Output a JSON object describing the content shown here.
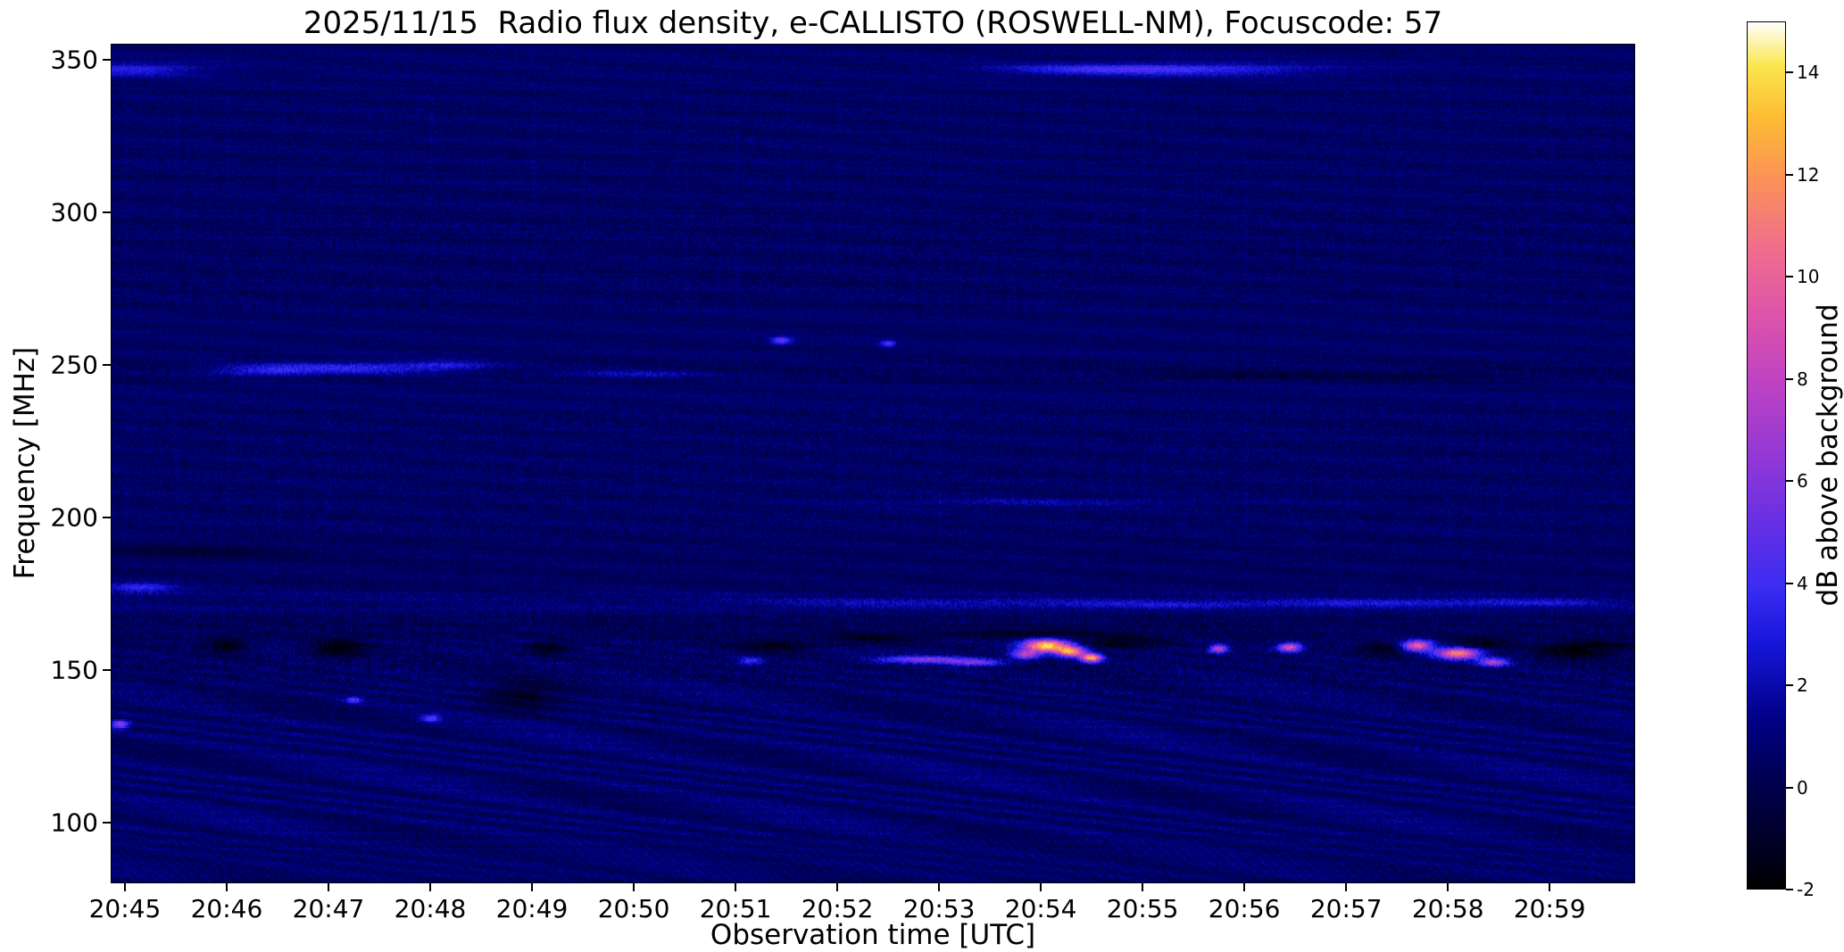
{
  "title": "2025/11/15  Radio flux density, e-CALLISTO (ROSWELL-NM), Focuscode: 57",
  "chart_data": {
    "type": "heatmap",
    "title": "2025/11/15  Radio flux density, e-CALLISTO (ROSWELL-NM), Focuscode: 57",
    "xlabel": "Observation time [UTC]",
    "ylabel": "Frequency [MHz]",
    "colorbar_label": "dB above background",
    "x_ticks": [
      "20:45",
      "20:46",
      "20:47",
      "20:48",
      "20:49",
      "20:50",
      "20:51",
      "20:52",
      "20:53",
      "20:54",
      "20:55",
      "20:56",
      "20:57",
      "20:58",
      "20:59"
    ],
    "x_range_minutes": [
      -0.14,
      14.84
    ],
    "y_ticks": [
      350,
      300,
      250,
      200,
      150,
      100
    ],
    "y_range_mhz": [
      80.0,
      355.4
    ],
    "value_range_db": [
      -2,
      15
    ],
    "colorbar_ticks": [
      14,
      12,
      10,
      8,
      6,
      4,
      2,
      0,
      -2
    ],
    "grid": false,
    "legend": "colorbar-right",
    "colormap_stops": [
      [
        0.0,
        "#000000"
      ],
      [
        0.06,
        "#00002a"
      ],
      [
        0.12,
        "#00004d"
      ],
      [
        0.2,
        "#010189"
      ],
      [
        0.28,
        "#1515d8"
      ],
      [
        0.35,
        "#3c2df3"
      ],
      [
        0.42,
        "#662fe4"
      ],
      [
        0.5,
        "#9338d5"
      ],
      [
        0.58,
        "#bc42c4"
      ],
      [
        0.66,
        "#dd53ab"
      ],
      [
        0.74,
        "#f06e8c"
      ],
      [
        0.82,
        "#fb9257"
      ],
      [
        0.89,
        "#fdbc33"
      ],
      [
        0.95,
        "#fae64e"
      ],
      [
        1.0,
        "#ffffff"
      ]
    ],
    "noise_seed": 42,
    "background_level_db": 0.55,
    "background_bands": [
      {
        "lo": 340,
        "hi": 356,
        "bias": 0.1,
        "noise": 0.45,
        "ripple": 0
      },
      {
        "lo": 300,
        "hi": 340,
        "bias": 0.0,
        "noise": 0.5,
        "ripple": 0,
        "columns": true
      },
      {
        "lo": 268,
        "hi": 300,
        "bias": -0.05,
        "noise": 0.6,
        "ripple": 0,
        "columns": true
      },
      {
        "lo": 252,
        "hi": 268,
        "bias": 0.02,
        "noise": 0.42,
        "ripple": 0
      },
      {
        "lo": 244,
        "hi": 252,
        "bias": -0.15,
        "noise": 0.65,
        "ripple": 0
      },
      {
        "lo": 236,
        "hi": 244,
        "bias": 0.08,
        "noise": 0.45,
        "ripple": 0
      },
      {
        "lo": 194,
        "hi": 236,
        "bias": -0.02,
        "noise": 0.62,
        "ripple": 0,
        "columns": true
      },
      {
        "lo": 176,
        "hi": 194,
        "bias": -0.1,
        "noise": 0.5,
        "ripple": 0
      },
      {
        "lo": 168,
        "hi": 176,
        "bias": 0.22,
        "noise": 0.65,
        "ripple": 0
      },
      {
        "lo": 160,
        "hi": 168,
        "bias": -0.3,
        "noise": 0.75,
        "ripple": 0.15
      },
      {
        "lo": 146,
        "hi": 160,
        "bias": -0.08,
        "noise": 0.85,
        "ripple": 0.25
      },
      {
        "lo": 134,
        "hi": 146,
        "bias": 0.02,
        "noise": 0.65,
        "ripple": 0.4
      },
      {
        "lo": 96,
        "hi": 134,
        "bias": 0.12,
        "noise": 0.55,
        "ripple": 0.5
      },
      {
        "lo": 80,
        "hi": 96,
        "bias": 0.1,
        "noise": 0.45,
        "ripple": 0.3,
        "stripes": true
      }
    ],
    "features": [
      {
        "t": 0.05,
        "f": 347,
        "wt": 0.5,
        "wf": 1.5,
        "db": 2.6
      },
      {
        "t": 9.5,
        "f": 347,
        "wt": 0.7,
        "wf": 1.2,
        "db": 2.2
      },
      {
        "t": 10.6,
        "f": 347,
        "wt": 0.9,
        "wf": 1.4,
        "db": 2.6
      },
      {
        "t": 2.25,
        "f": 249,
        "wt": 0.7,
        "wf": 1.3,
        "db": 3.0
      },
      {
        "t": 1.35,
        "f": 248,
        "wt": 0.35,
        "wf": 1.2,
        "db": 2.2
      },
      {
        "t": 3.2,
        "f": 250,
        "wt": 0.3,
        "wf": 1.0,
        "db": 1.8
      },
      {
        "t": 5.0,
        "f": 247,
        "wt": 0.5,
        "wf": 1.0,
        "db": 1.5
      },
      {
        "t": 0.15,
        "f": 177,
        "wt": 0.25,
        "wf": 1.3,
        "db": 2.8
      },
      {
        "t": 6.45,
        "f": 258,
        "wt": 0.07,
        "wf": 0.9,
        "db": 4.5
      },
      {
        "t": 7.5,
        "f": 257,
        "wt": 0.05,
        "wf": 0.8,
        "db": 3.8
      },
      {
        "t": 8.0,
        "f": 172,
        "wt": 1.5,
        "wf": 0.9,
        "db": 1.6
      },
      {
        "t": 10.4,
        "f": 171.5,
        "wt": 0.8,
        "wf": 0.8,
        "db": 1.7
      },
      {
        "t": 12.45,
        "f": 172,
        "wt": 0.8,
        "wf": 0.9,
        "db": 2.2
      },
      {
        "t": 13.9,
        "f": 172,
        "wt": 0.5,
        "wf": 0.8,
        "db": 1.9
      },
      {
        "t": 9.0,
        "f": 205,
        "wt": 1.2,
        "wf": 1.0,
        "db": 1.0
      },
      {
        "t": 9.05,
        "f": 158,
        "wt": 0.16,
        "wf": 1.4,
        "db": 14.0
      },
      {
        "t": 9.3,
        "f": 156,
        "wt": 0.1,
        "wf": 1.2,
        "db": 11.0
      },
      {
        "t": 8.85,
        "f": 155,
        "wt": 0.1,
        "wf": 1.0,
        "db": 7.0
      },
      {
        "t": 9.5,
        "f": 154,
        "wt": 0.07,
        "wf": 1.0,
        "db": 12.0
      },
      {
        "t": 7.85,
        "f": 153.5,
        "wt": 0.3,
        "wf": 0.8,
        "db": 5.5
      },
      {
        "t": 8.35,
        "f": 152.5,
        "wt": 0.2,
        "wf": 0.8,
        "db": 5.0
      },
      {
        "t": 10.75,
        "f": 157,
        "wt": 0.06,
        "wf": 0.9,
        "db": 8.0
      },
      {
        "t": 11.45,
        "f": 157.5,
        "wt": 0.08,
        "wf": 1.0,
        "db": 9.0
      },
      {
        "t": 12.7,
        "f": 158,
        "wt": 0.1,
        "wf": 1.2,
        "db": 9.5
      },
      {
        "t": 13.1,
        "f": 155.5,
        "wt": 0.15,
        "wf": 1.3,
        "db": 11.0
      },
      {
        "t": 13.45,
        "f": 152.5,
        "wt": 0.1,
        "wf": 0.9,
        "db": 7.0
      },
      {
        "t": -0.05,
        "f": 132,
        "wt": 0.06,
        "wf": 0.9,
        "db": 6.0
      },
      {
        "t": 3.0,
        "f": 134,
        "wt": 0.07,
        "wf": 0.8,
        "db": 4.5
      },
      {
        "t": 2.25,
        "f": 140,
        "wt": 0.06,
        "wf": 0.8,
        "db": 3.5
      },
      {
        "t": 6.15,
        "f": 153,
        "wt": 0.08,
        "wf": 0.8,
        "db": 4.0
      },
      {
        "t": 1.0,
        "f": 158,
        "wt": 0.15,
        "wf": 1.8,
        "db": -2.2
      },
      {
        "t": 2.1,
        "f": 157,
        "wt": 0.2,
        "wf": 2.2,
        "db": -2.2
      },
      {
        "t": 3.9,
        "f": 141,
        "wt": 0.25,
        "wf": 3.5,
        "db": -1.6
      },
      {
        "t": 4.15,
        "f": 157,
        "wt": 0.15,
        "wf": 1.5,
        "db": -1.8
      },
      {
        "t": 6.4,
        "f": 158,
        "wt": 0.25,
        "wf": 1.5,
        "db": -1.8
      },
      {
        "t": 7.3,
        "f": 160,
        "wt": 0.3,
        "wf": 1.5,
        "db": -1.5
      },
      {
        "t": 8.9,
        "f": 162,
        "wt": 0.6,
        "wf": 1.0,
        "db": -1.5
      },
      {
        "t": 9.8,
        "f": 159,
        "wt": 0.3,
        "wf": 1.4,
        "db": -2.0
      },
      {
        "t": 12.35,
        "f": 157,
        "wt": 0.15,
        "wf": 1.6,
        "db": -2.0
      },
      {
        "t": 13.3,
        "f": 158.5,
        "wt": 0.2,
        "wf": 1.6,
        "db": -2.0
      },
      {
        "t": 14.2,
        "f": 156,
        "wt": 0.25,
        "wf": 2.0,
        "db": -1.8
      },
      {
        "t": 0.7,
        "f": 189,
        "wt": 0.8,
        "wf": 1.6,
        "db": -1.0
      },
      {
        "t": 11.0,
        "f": 246.5,
        "wt": 0.8,
        "wf": 0.7,
        "db": -1.0
      },
      {
        "t": 12.8,
        "f": 246.5,
        "wt": 0.7,
        "wf": 0.7,
        "db": -0.9
      },
      {
        "t": 14.5,
        "f": 158,
        "wt": 0.3,
        "wf": 1.5,
        "db": -1.5
      }
    ]
  }
}
